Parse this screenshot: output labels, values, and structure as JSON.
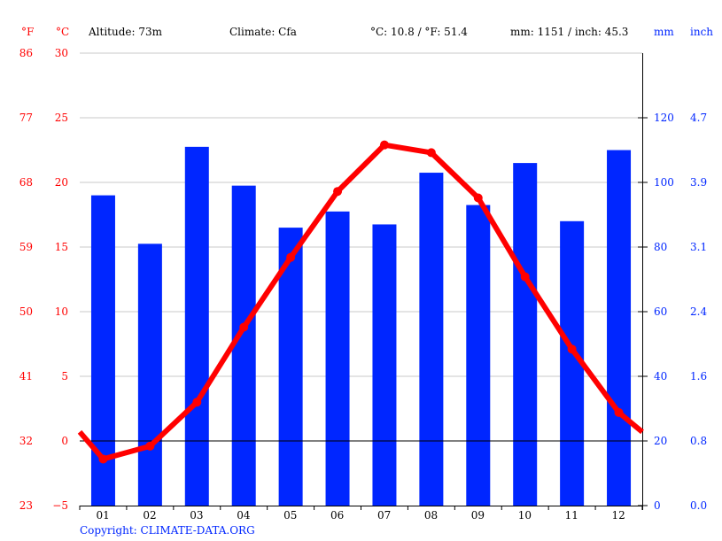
{
  "header": {
    "unit_f": "°F",
    "unit_c": "°C",
    "altitude": "Altitude: 73m",
    "climate": "Climate: Cfa",
    "avg_temp": "°C: 10.8 / °F: 51.4",
    "precip_total": "mm: 1151 / inch: 45.3",
    "unit_mm": "mm",
    "unit_inch": "inch"
  },
  "axes": {
    "left_f": [
      "86",
      "77",
      "68",
      "59",
      "50",
      "41",
      "32",
      "23"
    ],
    "left_c": [
      "30",
      "25",
      "20",
      "15",
      "10",
      "5",
      "0",
      "−5"
    ],
    "right_mm": [
      "120",
      "100",
      "80",
      "60",
      "40",
      "20",
      "0"
    ],
    "right_inch": [
      "4.7",
      "3.9",
      "3.1",
      "2.4",
      "1.6",
      "0.8",
      "0.0"
    ]
  },
  "copyright": "Copyright: CLIMATE-DATA.ORG",
  "colors": {
    "temperature": "#ff0000",
    "precipitation": "#0026ff",
    "grid": "#c8c8c8"
  },
  "chart_data": {
    "type": "bar+line",
    "title": "",
    "categories": [
      "01",
      "02",
      "03",
      "04",
      "05",
      "06",
      "07",
      "08",
      "09",
      "10",
      "11",
      "12"
    ],
    "series": [
      {
        "name": "Precipitation (mm)",
        "type": "bar",
        "axis": "right",
        "values": [
          96,
          81,
          111,
          99,
          86,
          91,
          87,
          103,
          93,
          106,
          88,
          110
        ]
      },
      {
        "name": "Temperature (°C)",
        "type": "line",
        "axis": "left",
        "values": [
          -1.4,
          -0.4,
          3.0,
          8.8,
          14.2,
          19.3,
          22.9,
          22.3,
          18.8,
          12.7,
          7.1,
          2.2
        ]
      }
    ],
    "left_axis": {
      "label": "°C / °F",
      "ylim_c": [
        -5,
        30
      ],
      "ticks_c": [
        -5,
        0,
        5,
        10,
        15,
        20,
        25,
        30
      ],
      "ticks_f": [
        23,
        32,
        41,
        50,
        59,
        68,
        77,
        86
      ]
    },
    "right_axis": {
      "label": "mm / inch",
      "ylim_mm": [
        0,
        140
      ],
      "ticks_mm": [
        0,
        20,
        40,
        60,
        80,
        100,
        120
      ],
      "ticks_inch": [
        0.0,
        0.8,
        1.6,
        2.4,
        3.1,
        3.9,
        4.7
      ]
    },
    "annotations": [
      "Altitude: 73m",
      "Climate: Cfa",
      "°C: 10.8 / °F: 51.4",
      "mm: 1151 / inch: 45.3"
    ],
    "grid": true,
    "legend": "none"
  }
}
